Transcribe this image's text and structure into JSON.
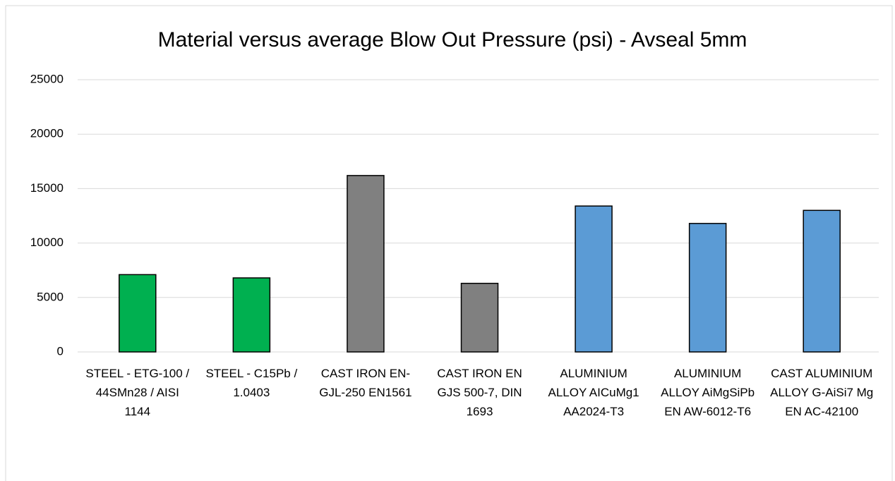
{
  "chart_data": {
    "type": "bar",
    "title": "Material versus average Blow Out Pressure (psi) - Avseal 5mm",
    "categories": [
      "STEEL - ETG-100 / 44SMn28 / AISI 1144",
      "STEEL - C15Pb / 1.0403",
      "CAST IRON EN-GJL-250 EN1561",
      "CAST IRON EN GJS 500-7, DIN 1693",
      "ALUMINIUM ALLOY AICuMg1 AA2024-T3",
      "ALUMINIUM ALLOY AiMgSiPb EN AW-6012-T6",
      "CAST ALUMINIUM ALLOY G-AiSi7 Mg EN AC-42100"
    ],
    "values": [
      7100,
      6800,
      16200,
      6300,
      13400,
      11800,
      13000
    ],
    "colors": [
      "#00b050",
      "#00b050",
      "#808080",
      "#808080",
      "#5b9bd5",
      "#5b9bd5",
      "#5b9bd5"
    ],
    "ylim": [
      0,
      25000
    ],
    "yticks": [
      0,
      5000,
      10000,
      15000,
      20000,
      25000
    ],
    "grid": true
  }
}
